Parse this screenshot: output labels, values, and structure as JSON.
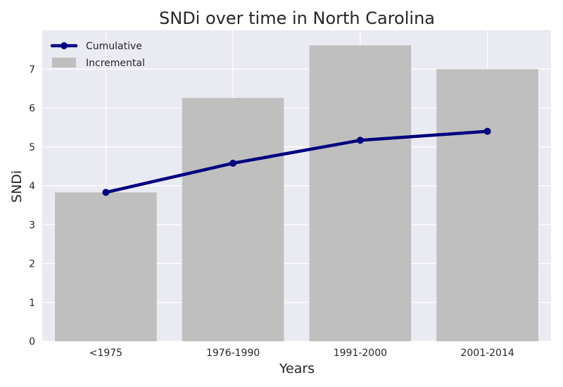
{
  "chart_data": {
    "type": "bar",
    "title": "SNDi over time in North Carolina",
    "xlabel": "Years",
    "ylabel": "SNDi",
    "categories": [
      "<1975",
      "1976-1990",
      "1991-2000",
      "2001-2014"
    ],
    "ylim": [
      0,
      8
    ],
    "yticks": [
      0,
      1,
      2,
      3,
      4,
      5,
      6,
      7
    ],
    "grid": true,
    "legend_position": "top-left",
    "series": [
      {
        "name": "Cumulative",
        "kind": "line",
        "color": "#00007f",
        "values": [
          3.83,
          4.58,
          5.17,
          5.4
        ]
      },
      {
        "name": "Incremental",
        "kind": "bar",
        "color": "#bfbfbf",
        "values": [
          3.83,
          6.26,
          7.61,
          7.0
        ]
      }
    ],
    "plot_background": "#eaeaf2"
  }
}
